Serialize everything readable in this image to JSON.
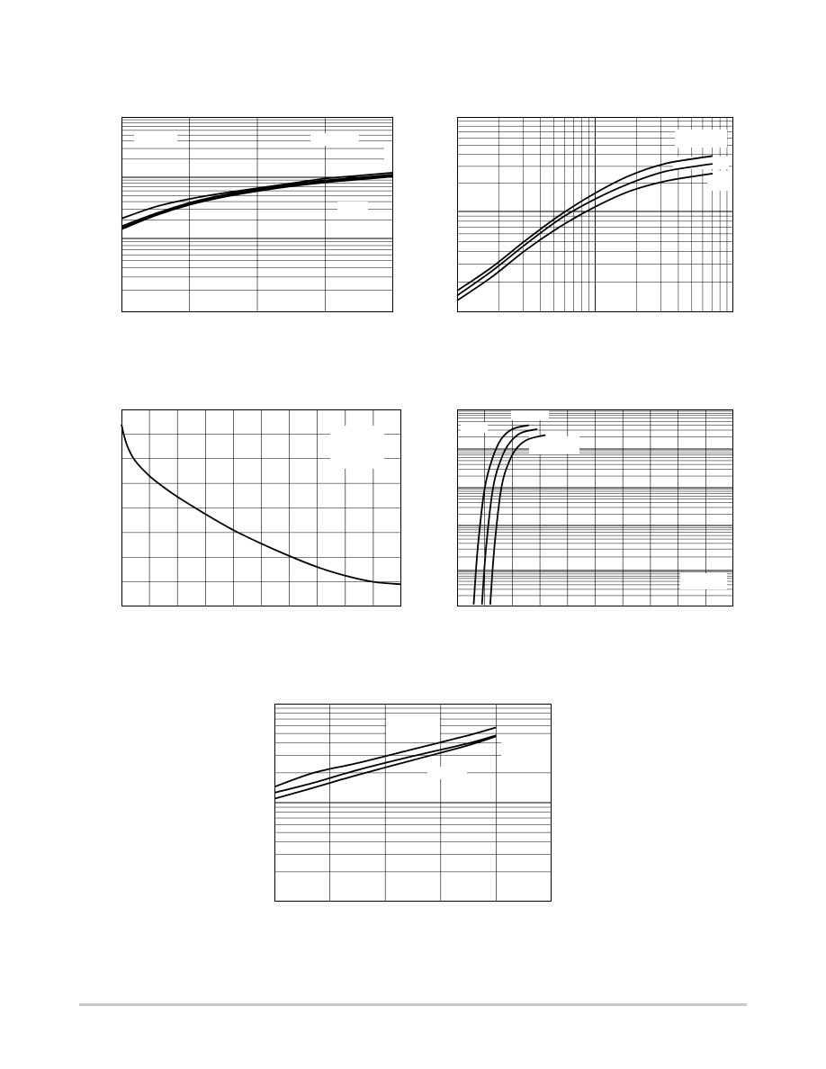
{
  "colors": {
    "ink": "#000000",
    "background": "#ffffff",
    "footer_rule": "#c8c8c8"
  },
  "chart_data": [
    {
      "type": "line",
      "title": "",
      "xlabel": "",
      "ylabel": "",
      "xscale": "linear",
      "yscale": "log",
      "xlim": [
        0,
        4
      ],
      "ylim": [
        0,
        1
      ],
      "grid": true,
      "legend": "none",
      "series": [
        {
          "name": "",
          "x": [
            0,
            0.5,
            1,
            1.5,
            2,
            2.5,
            3,
            3.5,
            4
          ],
          "y": [
            0.48,
            0.54,
            0.58,
            0.61,
            0.635,
            0.66,
            0.685,
            0.7,
            0.715
          ]
        },
        {
          "name": "",
          "x": [
            0,
            0.5,
            1,
            1.5,
            2,
            2.5,
            3,
            3.5,
            4
          ],
          "y": [
            0.43,
            0.5,
            0.555,
            0.595,
            0.625,
            0.65,
            0.67,
            0.685,
            0.7
          ]
        },
        {
          "name": "",
          "x": [
            0,
            0.5,
            1,
            1.5,
            2,
            2.5,
            3,
            3.5,
            4
          ],
          "y": [
            0.44,
            0.505,
            0.56,
            0.6,
            0.63,
            0.655,
            0.675,
            0.69,
            0.705
          ]
        },
        {
          "name": "",
          "x": [
            0,
            0.5,
            1,
            1.5,
            2,
            2.5,
            3,
            3.5,
            4
          ],
          "y": [
            0.425,
            0.495,
            0.55,
            0.59,
            0.62,
            0.645,
            0.665,
            0.68,
            0.695
          ]
        }
      ]
    },
    {
      "type": "line",
      "title": "",
      "xlabel": "",
      "ylabel": "",
      "xscale": "log",
      "yscale": "log",
      "xlim": [
        0,
        2
      ],
      "ylim": [
        0,
        1
      ],
      "grid": true,
      "legend": "none",
      "series": [
        {
          "name": "",
          "x": [
            0,
            0.25,
            0.5,
            0.75,
            1,
            1.25,
            1.5,
            1.75,
            1.85
          ],
          "y": [
            0.11,
            0.23,
            0.37,
            0.5,
            0.61,
            0.7,
            0.76,
            0.79,
            0.8
          ]
        },
        {
          "name": "",
          "x": [
            0,
            0.25,
            0.5,
            0.75,
            1,
            1.25,
            1.5,
            1.75,
            1.85
          ],
          "y": [
            0.085,
            0.21,
            0.35,
            0.48,
            0.58,
            0.66,
            0.72,
            0.75,
            0.76
          ]
        },
        {
          "name": "",
          "x": [
            0,
            0.25,
            0.5,
            0.75,
            1,
            1.25,
            1.5,
            1.75,
            1.85
          ],
          "y": [
            0.06,
            0.18,
            0.32,
            0.44,
            0.54,
            0.62,
            0.67,
            0.7,
            0.71
          ]
        }
      ]
    },
    {
      "type": "line",
      "title": "",
      "xlabel": "",
      "ylabel": "",
      "xscale": "linear",
      "yscale": "linear",
      "xlim": [
        0,
        10
      ],
      "ylim": [
        0,
        8
      ],
      "grid": true,
      "legend": "none",
      "series": [
        {
          "name": "",
          "x": [
            0,
            0.1,
            0.25,
            0.5,
            1,
            1.5,
            2,
            3,
            4,
            5,
            6,
            7,
            8,
            9,
            10
          ],
          "y": [
            7.4,
            6.9,
            6.4,
            5.9,
            5.3,
            4.85,
            4.45,
            3.75,
            3.1,
            2.55,
            2.05,
            1.6,
            1.25,
            1.0,
            0.9
          ]
        }
      ]
    },
    {
      "type": "line",
      "title": "",
      "xlabel": "",
      "ylabel": "",
      "xscale": "linear",
      "yscale": "log",
      "xlim": [
        0,
        10
      ],
      "ylim": [
        0,
        5
      ],
      "grid": true,
      "legend": "none",
      "series": [
        {
          "name": "",
          "x": [
            0.6,
            0.75,
            1.0,
            1.3,
            1.6,
            2.0,
            2.6
          ],
          "y": [
            0.05,
            1.5,
            3.0,
            3.8,
            4.25,
            4.5,
            4.6
          ]
        },
        {
          "name": "",
          "x": [
            0.9,
            1.05,
            1.3,
            1.6,
            1.9,
            2.3,
            2.9
          ],
          "y": [
            0.05,
            1.5,
            3.0,
            3.75,
            4.15,
            4.4,
            4.5
          ]
        },
        {
          "name": "",
          "x": [
            1.2,
            1.35,
            1.6,
            1.9,
            2.2,
            2.6,
            3.2
          ],
          "y": [
            0.05,
            1.5,
            3.0,
            3.7,
            4.05,
            4.25,
            4.35
          ]
        }
      ]
    },
    {
      "type": "line",
      "title": "",
      "xlabel": "",
      "ylabel": "",
      "xscale": "linear",
      "yscale": "log",
      "xlim": [
        0,
        5
      ],
      "ylim": [
        0,
        1
      ],
      "grid": true,
      "legend": "none",
      "series": [
        {
          "name": "",
          "x": [
            0,
            0.7,
            1.5,
            2.5,
            3.5,
            4
          ],
          "y": [
            0.58,
            0.65,
            0.7,
            0.77,
            0.84,
            0.88
          ]
        },
        {
          "name": "",
          "x": [
            0,
            0.7,
            1.5,
            2.5,
            3.5,
            4
          ],
          "y": [
            0.55,
            0.6,
            0.665,
            0.735,
            0.8,
            0.84
          ]
        },
        {
          "name": "",
          "x": [
            0,
            0.7,
            1.5,
            2.5,
            3.5,
            4
          ],
          "y": [
            0.52,
            0.575,
            0.64,
            0.715,
            0.79,
            0.835
          ]
        }
      ]
    }
  ]
}
